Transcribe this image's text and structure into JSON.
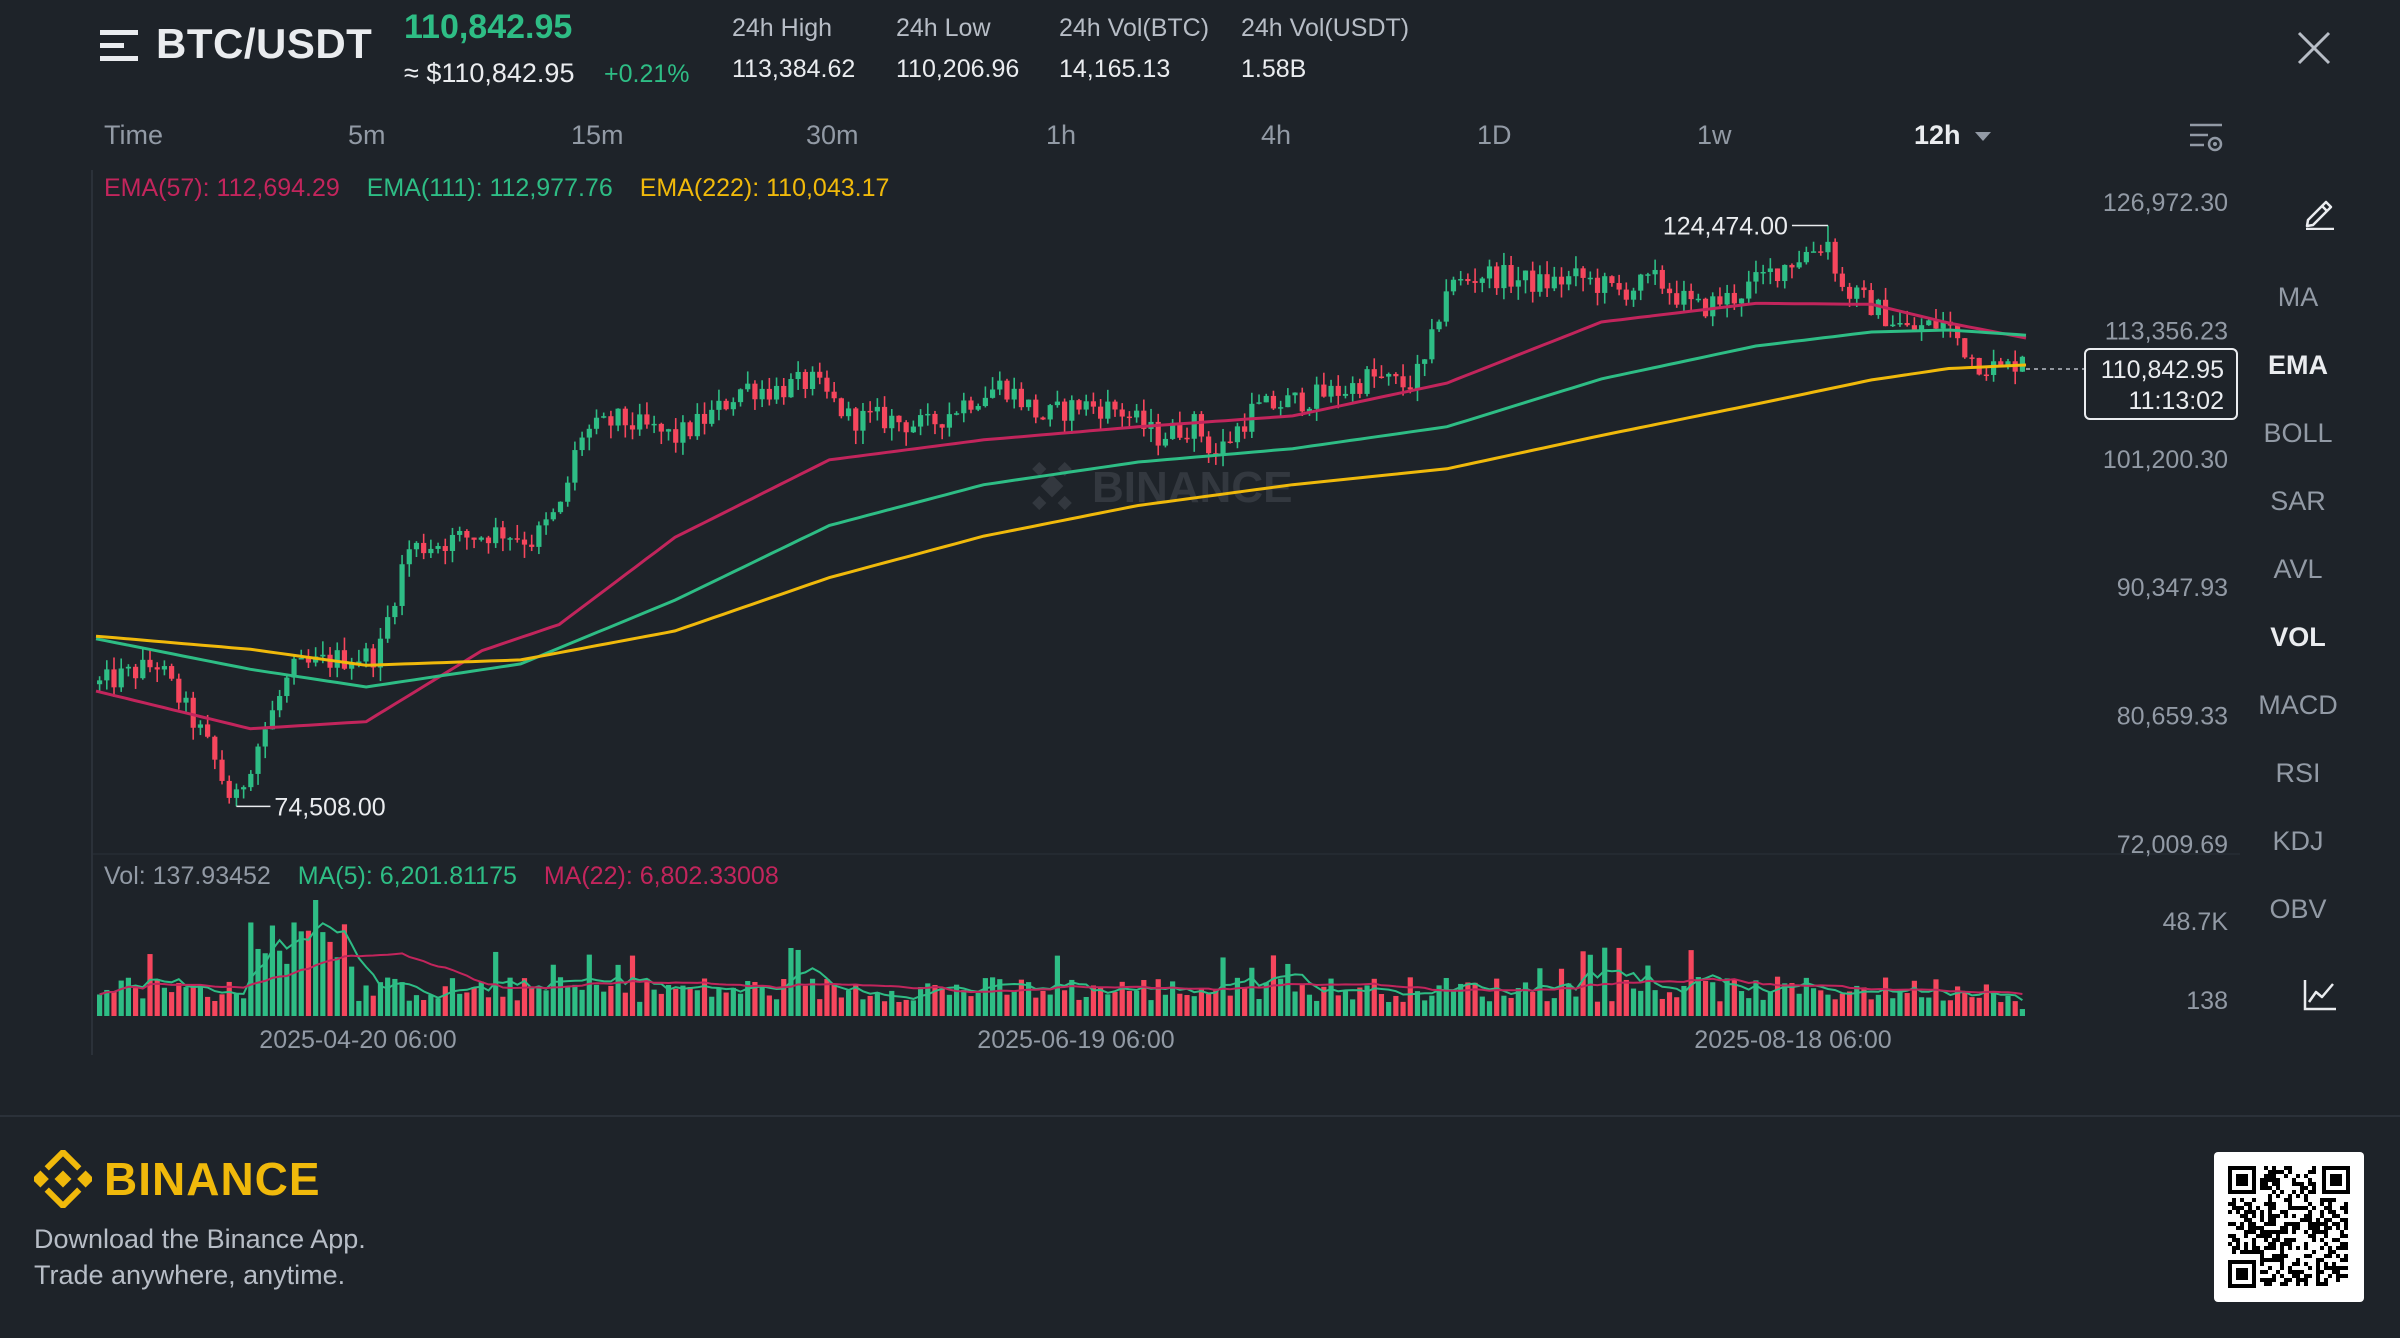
{
  "header": {
    "pair": "BTC/USDT",
    "last_price": "110,842.95",
    "usd_price": "≈ $110,842.95",
    "change": "+0.21%",
    "stats": [
      {
        "label": "24h High",
        "value": "113,384.62"
      },
      {
        "label": "24h Low",
        "value": "110,206.96"
      },
      {
        "label": "24h Vol(BTC)",
        "value": "14,165.13"
      },
      {
        "label": "24h Vol(USDT)",
        "value": "1.58B"
      }
    ]
  },
  "intervals": {
    "items": [
      "Time",
      "5m",
      "15m",
      "30m",
      "1h",
      "4h",
      "1D",
      "1w",
      "12h"
    ],
    "active": "12h"
  },
  "legend": {
    "ema57": "EMA(57): 112,694.29",
    "ema111": "EMA(111): 112,977.76",
    "ema222": "EMA(222): 110,043.17",
    "vol": "Vol: 137.93452",
    "ma5": "MA(5): 6,201.81175",
    "ma22": "MA(22): 6,802.33008"
  },
  "indicators": [
    "MA",
    "EMA",
    "BOLL",
    "SAR",
    "AVL",
    "VOL",
    "MACD",
    "RSI",
    "KDJ",
    "OBV"
  ],
  "active_indicators": [
    "EMA",
    "VOL"
  ],
  "icons": {
    "menu": "menu-icon",
    "close": "close-icon",
    "chart_settings": "chart-settings-icon",
    "draw": "pencil-icon",
    "chart_type": "line-chart-icon"
  },
  "price_tag": {
    "price": "110,842.95",
    "countdown": "11:13:02"
  },
  "watermark": "BINANCE",
  "colors": {
    "up": "#2ebd85",
    "down": "#f6465d",
    "ema57": "#c2255c",
    "ema111": "#2ebd85",
    "ema222": "#f0b90b",
    "brand": "#f0b90b",
    "background": "#1e2329"
  },
  "footer": {
    "brand": "BINANCE",
    "line1": "Download the Binance App.",
    "line2": "Trade anywhere, anytime."
  },
  "chart_data": {
    "type": "candlestick",
    "y_axis_labels": [
      "126,972.30",
      "113,356.23",
      "101,200.30",
      "90,347.93",
      "80,659.33",
      "72,009.69"
    ],
    "y_axis_values": [
      126972.3,
      113356.23,
      101200.3,
      90347.93,
      80659.33,
      72009.69
    ],
    "y_scale": "log",
    "x_axis_labels": [
      "2025-04-20 06:00",
      "2025-06-19 06:00",
      "2025-08-18 06:00"
    ],
    "annotations": {
      "high": "124,474.00",
      "low": "74,508.00"
    },
    "price_path": [
      {
        "t": 0,
        "p": 83000
      },
      {
        "t": 0.03,
        "p": 84500
      },
      {
        "t": 0.055,
        "p": 79000
      },
      {
        "t": 0.07,
        "p": 74508
      },
      {
        "t": 0.08,
        "p": 78000
      },
      {
        "t": 0.1,
        "p": 84000
      },
      {
        "t": 0.12,
        "p": 84800
      },
      {
        "t": 0.145,
        "p": 85200
      },
      {
        "t": 0.15,
        "p": 88000
      },
      {
        "t": 0.16,
        "p": 93500
      },
      {
        "t": 0.19,
        "p": 94500
      },
      {
        "t": 0.21,
        "p": 95000
      },
      {
        "t": 0.225,
        "p": 94200
      },
      {
        "t": 0.24,
        "p": 97000
      },
      {
        "t": 0.25,
        "p": 103500
      },
      {
        "t": 0.27,
        "p": 104800
      },
      {
        "t": 0.3,
        "p": 103200
      },
      {
        "t": 0.32,
        "p": 105500
      },
      {
        "t": 0.335,
        "p": 108000
      },
      {
        "t": 0.35,
        "p": 107600
      },
      {
        "t": 0.37,
        "p": 108500
      },
      {
        "t": 0.39,
        "p": 105000
      },
      {
        "t": 0.41,
        "p": 104900
      },
      {
        "t": 0.43,
        "p": 104200
      },
      {
        "t": 0.45,
        "p": 106500
      },
      {
        "t": 0.47,
        "p": 108200
      },
      {
        "t": 0.49,
        "p": 105000
      },
      {
        "t": 0.51,
        "p": 106300
      },
      {
        "t": 0.53,
        "p": 105800
      },
      {
        "t": 0.55,
        "p": 103300
      },
      {
        "t": 0.57,
        "p": 104500
      },
      {
        "t": 0.58,
        "p": 101500
      },
      {
        "t": 0.6,
        "p": 105800
      },
      {
        "t": 0.63,
        "p": 106900
      },
      {
        "t": 0.65,
        "p": 107800
      },
      {
        "t": 0.66,
        "p": 108900
      },
      {
        "t": 0.68,
        "p": 108000
      },
      {
        "t": 0.69,
        "p": 110200
      },
      {
        "t": 0.7,
        "p": 117800
      },
      {
        "t": 0.72,
        "p": 119300
      },
      {
        "t": 0.75,
        "p": 118200
      },
      {
        "t": 0.77,
        "p": 118900
      },
      {
        "t": 0.79,
        "p": 117400
      },
      {
        "t": 0.81,
        "p": 118600
      },
      {
        "t": 0.83,
        "p": 115600
      },
      {
        "t": 0.85,
        "p": 116900
      },
      {
        "t": 0.87,
        "p": 119500
      },
      {
        "t": 0.89,
        "p": 121800
      },
      {
        "t": 0.9,
        "p": 122800
      },
      {
        "t": 0.905,
        "p": 117800
      },
      {
        "t": 0.92,
        "p": 116200
      },
      {
        "t": 0.94,
        "p": 113500
      },
      {
        "t": 0.96,
        "p": 114200
      },
      {
        "t": 0.975,
        "p": 110500
      },
      {
        "t": 0.99,
        "p": 109500
      },
      {
        "t": 1.0,
        "p": 110843
      }
    ],
    "ema_series": [
      {
        "name": "EMA(57)",
        "color": "#c2255c",
        "points": [
          [
            0,
            82500
          ],
          [
            0.08,
            79800
          ],
          [
            0.14,
            80300
          ],
          [
            0.2,
            85500
          ],
          [
            0.24,
            87500
          ],
          [
            0.3,
            94500
          ],
          [
            0.38,
            101200
          ],
          [
            0.46,
            103000
          ],
          [
            0.54,
            104200
          ],
          [
            0.62,
            105200
          ],
          [
            0.7,
            108300
          ],
          [
            0.78,
            114300
          ],
          [
            0.86,
            116200
          ],
          [
            0.92,
            116100
          ],
          [
            0.96,
            114200
          ],
          [
            1.0,
            112694
          ]
        ]
      },
      {
        "name": "EMA(111)",
        "color": "#2ebd85",
        "points": [
          [
            0,
            86400
          ],
          [
            0.08,
            84100
          ],
          [
            0.14,
            82800
          ],
          [
            0.22,
            84500
          ],
          [
            0.3,
            89400
          ],
          [
            0.38,
            95500
          ],
          [
            0.46,
            99000
          ],
          [
            0.54,
            101000
          ],
          [
            0.62,
            102200
          ],
          [
            0.7,
            104200
          ],
          [
            0.78,
            108700
          ],
          [
            0.86,
            111900
          ],
          [
            0.92,
            113300
          ],
          [
            0.96,
            113500
          ],
          [
            1.0,
            112978
          ]
        ]
      },
      {
        "name": "EMA(222)",
        "color": "#f0b90b",
        "points": [
          [
            0,
            86600
          ],
          [
            0.08,
            85600
          ],
          [
            0.14,
            84400
          ],
          [
            0.22,
            84800
          ],
          [
            0.3,
            87000
          ],
          [
            0.38,
            91200
          ],
          [
            0.46,
            94600
          ],
          [
            0.54,
            97200
          ],
          [
            0.62,
            99000
          ],
          [
            0.7,
            100400
          ],
          [
            0.78,
            103400
          ],
          [
            0.86,
            106300
          ],
          [
            0.92,
            108600
          ],
          [
            0.96,
            109700
          ],
          [
            1.0,
            110043
          ]
        ]
      }
    ],
    "volume_axis_labels": [
      "48.7K",
      "138"
    ],
    "volume_ma_series": [
      {
        "name": "MA(5)",
        "color": "#2ebd85"
      },
      {
        "name": "MA(22)",
        "color": "#c2255c"
      }
    ]
  }
}
